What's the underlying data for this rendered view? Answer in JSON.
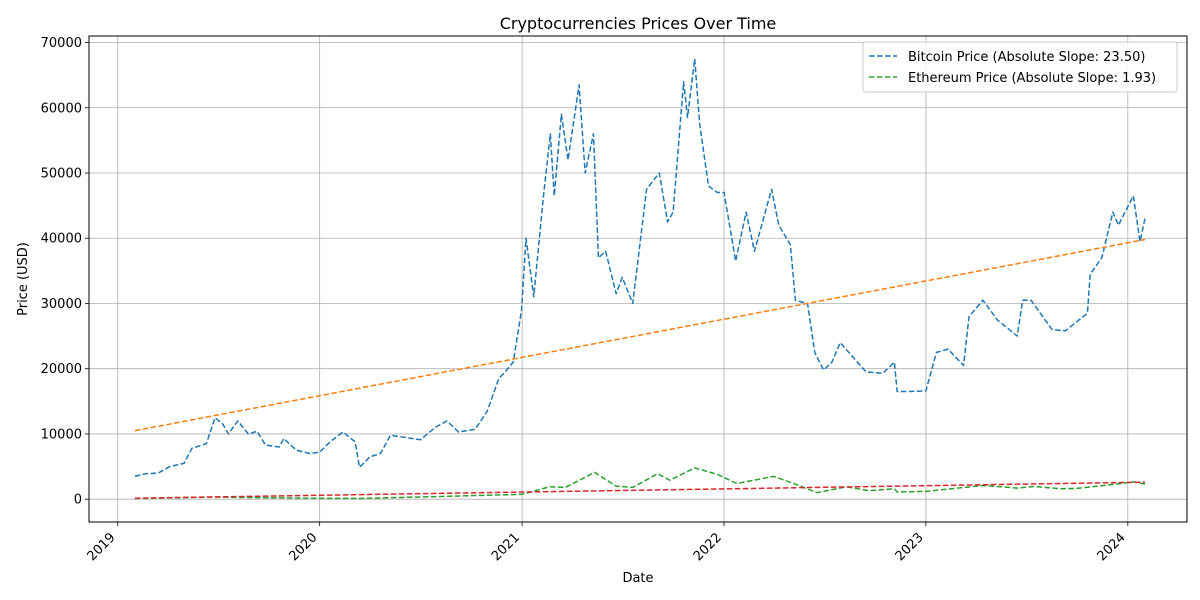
{
  "chart_data": {
    "type": "line",
    "title": "Cryptocurrencies Prices Over Time",
    "xlabel": "Date",
    "ylabel": "Price (USD)",
    "xlim": [
      "2018-11-10",
      "2024-04-17"
    ],
    "ylim": [
      -3500,
      71000
    ],
    "x_ticks": [
      {
        "label": "2019",
        "date": "2019-01-01"
      },
      {
        "label": "2020",
        "date": "2020-01-01"
      },
      {
        "label": "2021",
        "date": "2021-01-01"
      },
      {
        "label": "2022",
        "date": "2022-01-01"
      },
      {
        "label": "2023",
        "date": "2023-01-01"
      },
      {
        "label": "2024",
        "date": "2024-01-01"
      }
    ],
    "y_ticks": [
      0,
      10000,
      20000,
      30000,
      40000,
      50000,
      60000,
      70000
    ],
    "grid": true,
    "legend_position": "top-right",
    "series": [
      {
        "name": "Bitcoin Price (Absolute Slope: 23.50)",
        "color": "#1f77b4",
        "style": "dashed",
        "points": [
          [
            "2019-02-01",
            3500
          ],
          [
            "2019-02-20",
            3900
          ],
          [
            "2019-03-15",
            4000
          ],
          [
            "2019-04-05",
            5000
          ],
          [
            "2019-05-01",
            5500
          ],
          [
            "2019-05-15",
            7800
          ],
          [
            "2019-06-10",
            8500
          ],
          [
            "2019-06-26",
            12500
          ],
          [
            "2019-07-10",
            11500
          ],
          [
            "2019-07-20",
            10000
          ],
          [
            "2019-08-06",
            12000
          ],
          [
            "2019-08-25",
            10000
          ],
          [
            "2019-09-10",
            10400
          ],
          [
            "2019-09-25",
            8300
          ],
          [
            "2019-10-20",
            8000
          ],
          [
            "2019-10-28",
            9300
          ],
          [
            "2019-11-20",
            7500
          ],
          [
            "2019-12-15",
            7000
          ],
          [
            "2020-01-01",
            7200
          ],
          [
            "2020-01-20",
            8800
          ],
          [
            "2020-02-12",
            10300
          ],
          [
            "2020-03-05",
            8800
          ],
          [
            "2020-03-13",
            4900
          ],
          [
            "2020-04-01",
            6500
          ],
          [
            "2020-04-20",
            7000
          ],
          [
            "2020-05-08",
            9800
          ],
          [
            "2020-06-01",
            9500
          ],
          [
            "2020-07-01",
            9100
          ],
          [
            "2020-07-28",
            11000
          ],
          [
            "2020-08-18",
            12000
          ],
          [
            "2020-09-08",
            10300
          ],
          [
            "2020-10-08",
            10700
          ],
          [
            "2020-10-30",
            13500
          ],
          [
            "2020-11-20",
            18500
          ],
          [
            "2020-12-01",
            19500
          ],
          [
            "2020-12-16",
            21000
          ],
          [
            "2020-12-31",
            29000
          ],
          [
            "2021-01-08",
            40000
          ],
          [
            "2021-01-22",
            31000
          ],
          [
            "2021-02-08",
            46000
          ],
          [
            "2021-02-21",
            56000
          ],
          [
            "2021-02-28",
            46500
          ],
          [
            "2021-03-13",
            59000
          ],
          [
            "2021-03-25",
            52000
          ],
          [
            "2021-04-14",
            63500
          ],
          [
            "2021-04-25",
            50000
          ],
          [
            "2021-05-10",
            56000
          ],
          [
            "2021-05-19",
            37000
          ],
          [
            "2021-06-01",
            38000
          ],
          [
            "2021-06-20",
            31500
          ],
          [
            "2021-07-01",
            34000
          ],
          [
            "2021-07-20",
            30000
          ],
          [
            "2021-08-14",
            47500
          ],
          [
            "2021-09-06",
            50000
          ],
          [
            "2021-09-21",
            42500
          ],
          [
            "2021-10-01",
            44000
          ],
          [
            "2021-10-20",
            64000
          ],
          [
            "2021-10-27",
            58500
          ],
          [
            "2021-11-09",
            67500
          ],
          [
            "2021-11-18",
            57500
          ],
          [
            "2021-12-04",
            48000
          ],
          [
            "2021-12-20",
            47000
          ],
          [
            "2022-01-01",
            47000
          ],
          [
            "2022-01-22",
            36500
          ],
          [
            "2022-02-10",
            44000
          ],
          [
            "2022-02-25",
            38000
          ],
          [
            "2022-03-28",
            47500
          ],
          [
            "2022-04-10",
            42000
          ],
          [
            "2022-05-01",
            39000
          ],
          [
            "2022-05-10",
            30500
          ],
          [
            "2022-06-01",
            30000
          ],
          [
            "2022-06-14",
            22500
          ],
          [
            "2022-06-30",
            19800
          ],
          [
            "2022-07-15",
            21000
          ],
          [
            "2022-07-30",
            24000
          ],
          [
            "2022-08-25",
            21500
          ],
          [
            "2022-09-15",
            19500
          ],
          [
            "2022-10-15",
            19300
          ],
          [
            "2022-11-05",
            21000
          ],
          [
            "2022-11-10",
            16500
          ],
          [
            "2022-11-28",
            16500
          ],
          [
            "2023-01-01",
            16600
          ],
          [
            "2023-01-20",
            22500
          ],
          [
            "2023-02-10",
            23000
          ],
          [
            "2023-03-10",
            20500
          ],
          [
            "2023-03-20",
            28000
          ],
          [
            "2023-04-14",
            30500
          ],
          [
            "2023-05-10",
            27500
          ],
          [
            "2023-06-15",
            25000
          ],
          [
            "2023-06-25",
            30500
          ],
          [
            "2023-07-10",
            30500
          ],
          [
            "2023-08-17",
            26000
          ],
          [
            "2023-09-10",
            25800
          ],
          [
            "2023-10-20",
            28500
          ],
          [
            "2023-10-25",
            34500
          ],
          [
            "2023-11-15",
            37000
          ],
          [
            "2023-12-05",
            44000
          ],
          [
            "2023-12-15",
            42000
          ],
          [
            "2024-01-11",
            46500
          ],
          [
            "2024-01-23",
            39500
          ],
          [
            "2024-02-01",
            43000
          ]
        ]
      },
      {
        "color": "#ff7f0e",
        "style": "dashed",
        "points": [
          [
            "2019-02-01",
            10500
          ],
          [
            "2024-02-01",
            39800
          ]
        ]
      },
      {
        "name": "Ethereum Price (Absolute Slope: 1.93)",
        "color": "#2ca02c",
        "style": "dashed",
        "points": [
          [
            "2019-02-01",
            110
          ],
          [
            "2019-06-26",
            320
          ],
          [
            "2019-12-15",
            140
          ],
          [
            "2020-03-13",
            110
          ],
          [
            "2020-08-15",
            430
          ],
          [
            "2020-12-31",
            740
          ],
          [
            "2021-02-20",
            1900
          ],
          [
            "2021-03-20",
            1800
          ],
          [
            "2021-05-12",
            4100
          ],
          [
            "2021-06-20",
            2000
          ],
          [
            "2021-07-20",
            1800
          ],
          [
            "2021-09-03",
            3900
          ],
          [
            "2021-09-25",
            2900
          ],
          [
            "2021-11-09",
            4800
          ],
          [
            "2021-12-20",
            3800
          ],
          [
            "2022-01-24",
            2400
          ],
          [
            "2022-04-01",
            3500
          ],
          [
            "2022-05-10",
            2300
          ],
          [
            "2022-06-18",
            1000
          ],
          [
            "2022-08-10",
            1900
          ],
          [
            "2022-09-20",
            1300
          ],
          [
            "2022-11-05",
            1600
          ],
          [
            "2022-11-10",
            1100
          ],
          [
            "2023-01-01",
            1200
          ],
          [
            "2023-04-15",
            2100
          ],
          [
            "2023-06-15",
            1700
          ],
          [
            "2023-07-15",
            1950
          ],
          [
            "2023-09-01",
            1600
          ],
          [
            "2023-10-01",
            1650
          ],
          [
            "2023-12-10",
            2300
          ],
          [
            "2024-01-12",
            2650
          ],
          [
            "2024-02-01",
            2300
          ]
        ]
      },
      {
        "color": "#d62728",
        "style": "dashed",
        "points": [
          [
            "2019-02-01",
            150
          ],
          [
            "2024-02-01",
            2600
          ]
        ]
      }
    ]
  }
}
